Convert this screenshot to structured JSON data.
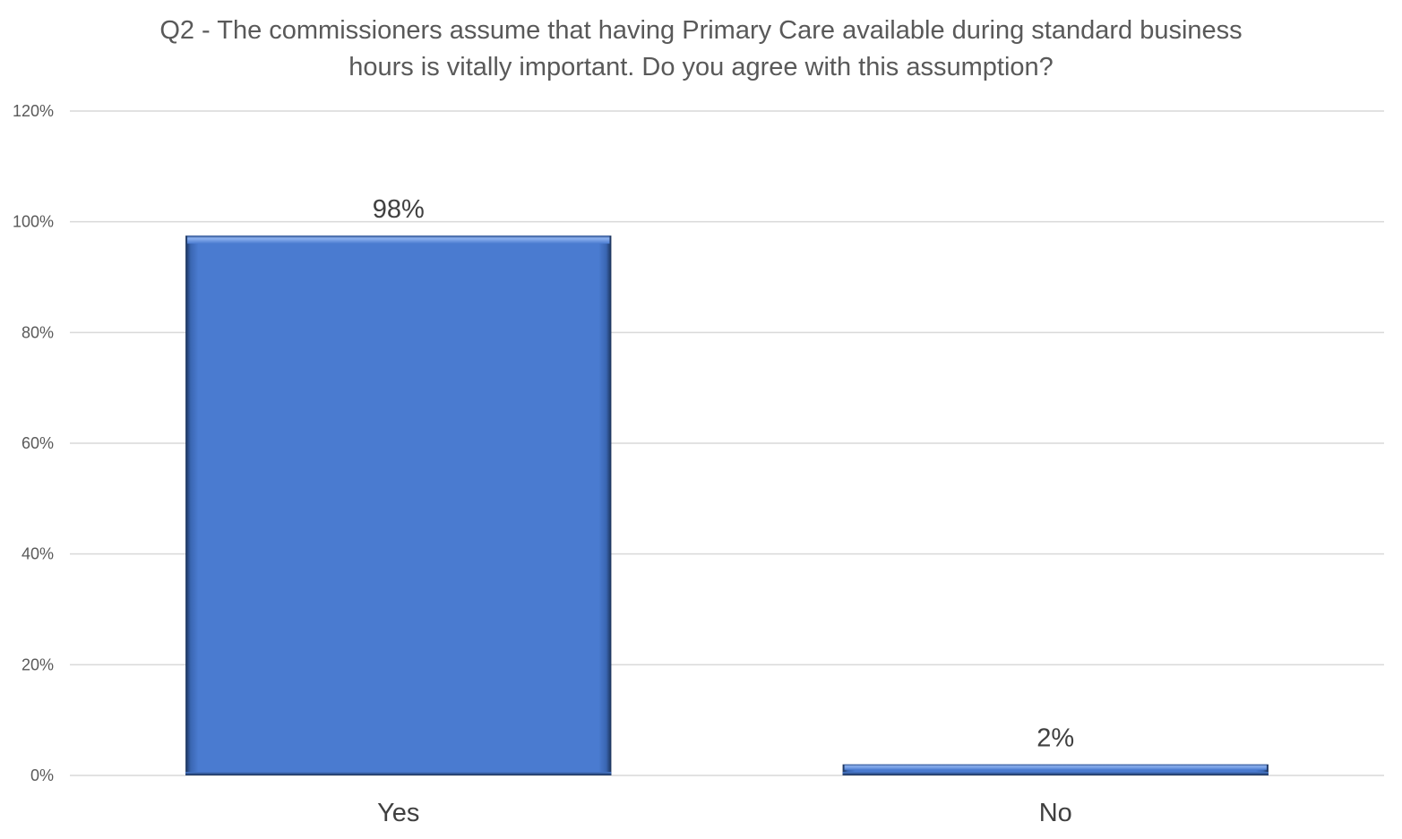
{
  "chart_data": {
    "type": "bar",
    "title_lines": [
      "Q2 - The commissioners assume that having Primary Care available during standard business",
      "hours is vitally important.  Do you agree with this assumption?"
    ],
    "categories": [
      "Yes",
      "No"
    ],
    "values": [
      0.975,
      0.02
    ],
    "data_labels": [
      "98%",
      "2%"
    ],
    "ylim": [
      0,
      1.2
    ],
    "yticks": [
      0,
      0.2,
      0.4,
      0.6,
      0.8,
      1.0,
      1.2
    ],
    "ytick_labels": [
      "0%",
      "20%",
      "40%",
      "60%",
      "80%",
      "100%",
      "120%"
    ],
    "xlabel": "",
    "ylabel": "",
    "grid": true,
    "legend": "none",
    "colors": {
      "bar_fill": "#4A7BD0",
      "bar_light": "#7EA6EC",
      "bar_dark": "#1B3157",
      "gridline": "#D9D9D9",
      "title_text": "#595959",
      "label_text": "#404040"
    }
  }
}
